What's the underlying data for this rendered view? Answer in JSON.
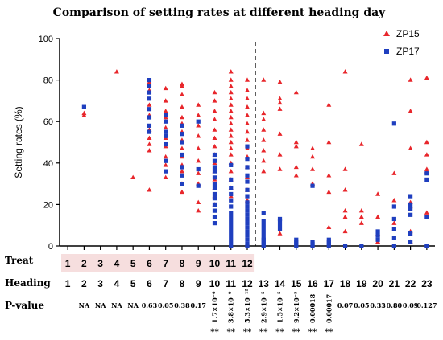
{
  "chart_data": {
    "type": "scatter",
    "title": "Comparison of setting rates at different heading day",
    "xlabel": "",
    "ylabel": "Setting rates (%)",
    "ylim": [
      0,
      100
    ],
    "yticks": [
      "0",
      "20",
      "40",
      "60",
      "80",
      "100"
    ],
    "xlim": [
      0.5,
      23.5
    ],
    "divider_x": 12.5,
    "legend_position": "top-right",
    "colors": {
      "ZP15": "#e8262b",
      "ZP17": "#1f3fbf",
      "treat_highlight": "#f6dede"
    },
    "row_labels": {
      "treat": "Treat",
      "heading": "Heading",
      "pvalue": "P-value"
    },
    "treat": [
      "1",
      "2",
      "3",
      "4",
      "5",
      "6",
      "7",
      "8",
      "9",
      "10",
      "11",
      "12"
    ],
    "heading": [
      "1",
      "2",
      "3",
      "4",
      "5",
      "6",
      "7",
      "8",
      "9",
      "10",
      "11",
      "12",
      "13",
      "14",
      "15",
      "16",
      "17",
      "18",
      "19",
      "20",
      "21",
      "22",
      "23"
    ],
    "pvalues": [
      {
        "x": 2,
        "text": "NA"
      },
      {
        "x": 3,
        "text": "NA"
      },
      {
        "x": 4,
        "text": "NA"
      },
      {
        "x": 5,
        "text": "NA"
      },
      {
        "x": 6,
        "text": "0.63"
      },
      {
        "x": 7,
        "text": "0.05"
      },
      {
        "x": 8,
        "text": "0.38"
      },
      {
        "x": 9,
        "text": "0.17"
      },
      {
        "x": 10,
        "text": "1.7×10⁻⁶",
        "rotated": true
      },
      {
        "x": 11,
        "text": "3.8×10⁻⁹",
        "rotated": true
      },
      {
        "x": 12,
        "text": "5.3×10⁻¹²",
        "rotated": true
      },
      {
        "x": 13,
        "text": "2.9×10⁻⁵",
        "rotated": true
      },
      {
        "x": 14,
        "text": "1.5×10⁻⁵",
        "rotated": true
      },
      {
        "x": 15,
        "text": "9.2×10⁻⁵",
        "rotated": true
      },
      {
        "x": 16,
        "text": "0.00018",
        "rotated": true
      },
      {
        "x": 17,
        "text": "0.00017",
        "rotated": true
      },
      {
        "x": 18,
        "text": "0.07"
      },
      {
        "x": 19,
        "text": "0.05"
      },
      {
        "x": 20,
        "text": "0.33"
      },
      {
        "x": 21,
        "text": "0.80"
      },
      {
        "x": 22,
        "text": "0.09"
      },
      {
        "x": 23,
        "text": "0.127"
      }
    ],
    "stars": [
      {
        "x": 10,
        "text": "**"
      },
      {
        "x": 11,
        "text": "**"
      },
      {
        "x": 12,
        "text": "**"
      },
      {
        "x": 13,
        "text": "**"
      },
      {
        "x": 14,
        "text": "**"
      },
      {
        "x": 15,
        "text": "**"
      },
      {
        "x": 16,
        "text": "**"
      },
      {
        "x": 17,
        "text": "**"
      }
    ],
    "series": [
      {
        "name": "ZP15",
        "marker": "triangle",
        "points": [
          [
            2,
            63
          ],
          [
            2,
            64
          ],
          [
            4,
            84
          ],
          [
            5,
            33
          ],
          [
            6,
            27
          ],
          [
            6,
            46
          ],
          [
            6,
            49
          ],
          [
            6,
            52
          ],
          [
            6,
            56
          ],
          [
            6,
            63
          ],
          [
            6,
            68
          ],
          [
            6,
            75
          ],
          [
            6,
            79
          ],
          [
            7,
            33
          ],
          [
            7,
            39
          ],
          [
            7,
            43
          ],
          [
            7,
            48
          ],
          [
            7,
            52
          ],
          [
            7,
            57
          ],
          [
            7,
            60
          ],
          [
            7,
            62
          ],
          [
            7,
            65
          ],
          [
            7,
            70
          ],
          [
            7,
            76
          ],
          [
            8,
            26
          ],
          [
            8,
            30
          ],
          [
            8,
            36
          ],
          [
            8,
            39
          ],
          [
            8,
            43
          ],
          [
            8,
            47
          ],
          [
            8,
            51
          ],
          [
            8,
            55
          ],
          [
            8,
            59
          ],
          [
            8,
            62
          ],
          [
            8,
            67
          ],
          [
            8,
            73
          ],
          [
            8,
            77
          ],
          [
            8,
            78
          ],
          [
            9,
            17
          ],
          [
            9,
            21
          ],
          [
            9,
            30
          ],
          [
            9,
            35
          ],
          [
            9,
            41
          ],
          [
            9,
            47
          ],
          [
            9,
            53
          ],
          [
            9,
            58
          ],
          [
            9,
            63
          ],
          [
            9,
            68
          ],
          [
            10,
            20
          ],
          [
            10,
            24
          ],
          [
            10,
            28
          ],
          [
            10,
            32
          ],
          [
            10,
            36
          ],
          [
            10,
            40
          ],
          [
            10,
            44
          ],
          [
            10,
            48
          ],
          [
            10,
            52
          ],
          [
            10,
            56
          ],
          [
            10,
            61
          ],
          [
            10,
            65
          ],
          [
            10,
            70
          ],
          [
            10,
            74
          ],
          [
            11,
            24
          ],
          [
            11,
            28
          ],
          [
            11,
            32
          ],
          [
            11,
            36
          ],
          [
            11,
            40
          ],
          [
            11,
            44
          ],
          [
            11,
            47
          ],
          [
            11,
            50
          ],
          [
            11,
            53
          ],
          [
            11,
            56
          ],
          [
            11,
            59
          ],
          [
            11,
            62
          ],
          [
            11,
            65
          ],
          [
            11,
            68
          ],
          [
            11,
            71
          ],
          [
            11,
            74
          ],
          [
            11,
            77
          ],
          [
            11,
            80
          ],
          [
            11,
            84
          ],
          [
            12,
            22
          ],
          [
            12,
            27
          ],
          [
            12,
            33
          ],
          [
            12,
            38
          ],
          [
            12,
            43
          ],
          [
            12,
            47
          ],
          [
            12,
            51
          ],
          [
            12,
            55
          ],
          [
            12,
            59
          ],
          [
            12,
            63
          ],
          [
            12,
            67
          ],
          [
            12,
            71
          ],
          [
            12,
            75
          ],
          [
            12,
            80
          ],
          [
            13,
            36
          ],
          [
            13,
            41
          ],
          [
            13,
            46
          ],
          [
            13,
            51
          ],
          [
            13,
            56
          ],
          [
            13,
            61
          ],
          [
            13,
            64
          ],
          [
            13,
            80
          ],
          [
            14,
            6
          ],
          [
            14,
            37
          ],
          [
            14,
            44
          ],
          [
            14,
            54
          ],
          [
            14,
            66
          ],
          [
            14,
            69
          ],
          [
            14,
            71
          ],
          [
            14,
            79
          ],
          [
            15,
            34
          ],
          [
            15,
            38
          ],
          [
            15,
            48
          ],
          [
            15,
            50
          ],
          [
            15,
            74
          ],
          [
            16,
            30
          ],
          [
            16,
            37
          ],
          [
            16,
            43
          ],
          [
            16,
            47
          ],
          [
            17,
            9
          ],
          [
            17,
            26
          ],
          [
            17,
            34
          ],
          [
            17,
            50
          ],
          [
            17,
            68
          ],
          [
            18,
            7
          ],
          [
            18,
            14
          ],
          [
            18,
            17
          ],
          [
            18,
            27
          ],
          [
            18,
            37
          ],
          [
            18,
            84
          ],
          [
            19,
            11
          ],
          [
            19,
            14
          ],
          [
            19,
            17
          ],
          [
            19,
            49
          ],
          [
            20,
            2
          ],
          [
            20,
            6
          ],
          [
            20,
            14
          ],
          [
            20,
            25
          ],
          [
            21,
            8
          ],
          [
            21,
            11
          ],
          [
            21,
            22
          ],
          [
            21,
            35
          ],
          [
            22,
            2
          ],
          [
            22,
            7
          ],
          [
            22,
            19
          ],
          [
            22,
            21
          ],
          [
            22,
            47
          ],
          [
            22,
            65
          ],
          [
            22,
            80
          ],
          [
            23,
            16
          ],
          [
            23,
            36
          ],
          [
            23,
            37
          ],
          [
            23,
            44
          ],
          [
            23,
            50
          ],
          [
            23,
            81
          ]
        ]
      },
      {
        "name": "ZP17",
        "marker": "square",
        "points": [
          [
            2,
            67
          ],
          [
            6,
            55
          ],
          [
            6,
            58
          ],
          [
            6,
            62
          ],
          [
            6,
            66
          ],
          [
            6,
            71
          ],
          [
            6,
            74
          ],
          [
            6,
            77
          ],
          [
            6,
            80
          ],
          [
            7,
            36
          ],
          [
            7,
            41
          ],
          [
            7,
            49
          ],
          [
            7,
            53
          ],
          [
            7,
            55
          ],
          [
            7,
            60
          ],
          [
            7,
            63
          ],
          [
            8,
            30
          ],
          [
            8,
            34
          ],
          [
            8,
            38
          ],
          [
            8,
            44
          ],
          [
            8,
            50
          ],
          [
            8,
            54
          ],
          [
            8,
            58
          ],
          [
            9,
            29
          ],
          [
            9,
            37
          ],
          [
            9,
            60
          ],
          [
            10,
            11
          ],
          [
            10,
            14
          ],
          [
            10,
            17
          ],
          [
            10,
            20
          ],
          [
            10,
            23
          ],
          [
            10,
            25
          ],
          [
            10,
            28
          ],
          [
            10,
            30
          ],
          [
            10,
            33
          ],
          [
            10,
            36
          ],
          [
            10,
            38
          ],
          [
            10,
            41
          ],
          [
            10,
            44
          ],
          [
            11,
            0
          ],
          [
            11,
            2
          ],
          [
            11,
            4
          ],
          [
            11,
            6
          ],
          [
            11,
            8
          ],
          [
            11,
            10
          ],
          [
            11,
            12
          ],
          [
            11,
            14
          ],
          [
            11,
            16
          ],
          [
            11,
            19
          ],
          [
            11,
            22
          ],
          [
            11,
            25
          ],
          [
            11,
            28
          ],
          [
            11,
            32
          ],
          [
            11,
            39
          ],
          [
            12,
            0
          ],
          [
            12,
            1
          ],
          [
            12,
            3
          ],
          [
            12,
            5
          ],
          [
            12,
            7
          ],
          [
            12,
            9
          ],
          [
            12,
            11
          ],
          [
            12,
            13
          ],
          [
            12,
            15
          ],
          [
            12,
            17
          ],
          [
            12,
            19
          ],
          [
            12,
            21
          ],
          [
            12,
            24
          ],
          [
            12,
            27
          ],
          [
            12,
            31
          ],
          [
            12,
            34
          ],
          [
            12,
            38
          ],
          [
            12,
            42
          ],
          [
            12,
            48
          ],
          [
            13,
            0
          ],
          [
            13,
            1
          ],
          [
            13,
            2
          ],
          [
            13,
            3
          ],
          [
            13,
            4
          ],
          [
            13,
            6
          ],
          [
            13,
            8
          ],
          [
            13,
            10
          ],
          [
            13,
            12
          ],
          [
            13,
            16
          ],
          [
            14,
            8
          ],
          [
            14,
            10
          ],
          [
            14,
            12
          ],
          [
            14,
            13
          ],
          [
            15,
            0
          ],
          [
            15,
            1
          ],
          [
            15,
            2
          ],
          [
            15,
            3
          ],
          [
            16,
            0
          ],
          [
            16,
            1
          ],
          [
            16,
            2
          ],
          [
            16,
            29
          ],
          [
            17,
            0
          ],
          [
            17,
            1
          ],
          [
            17,
            2
          ],
          [
            17,
            3
          ],
          [
            18,
            0
          ],
          [
            19,
            0
          ],
          [
            20,
            3
          ],
          [
            20,
            5
          ],
          [
            20,
            7
          ],
          [
            21,
            0
          ],
          [
            21,
            4
          ],
          [
            21,
            8
          ],
          [
            21,
            13
          ],
          [
            21,
            19
          ],
          [
            21,
            59
          ],
          [
            22,
            2
          ],
          [
            22,
            6
          ],
          [
            22,
            15
          ],
          [
            22,
            18
          ],
          [
            22,
            20
          ],
          [
            22,
            24
          ],
          [
            23,
            0
          ],
          [
            23,
            14
          ],
          [
            23,
            32
          ],
          [
            23,
            35
          ]
        ]
      }
    ]
  }
}
